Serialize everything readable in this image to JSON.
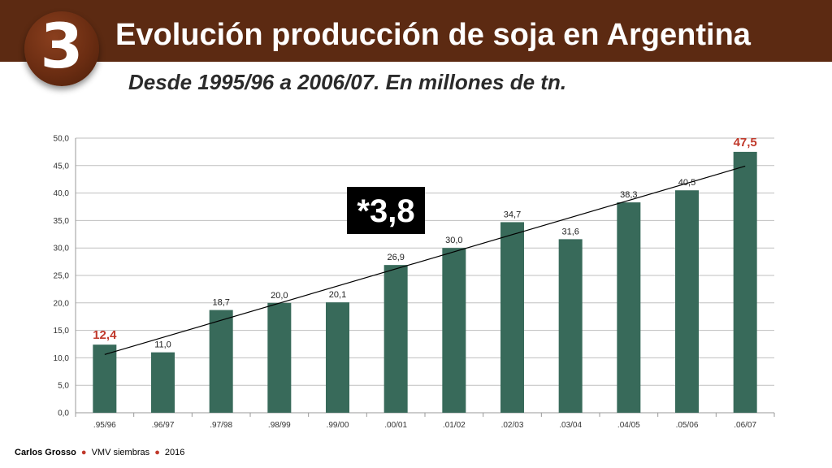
{
  "header": {
    "number": "3",
    "title": "Evolución producción de soja en Argentina",
    "subtitle": "Desde 1995/96 a 2006/07. En millones de tn."
  },
  "chart_data": {
    "type": "bar",
    "categories": [
      ".95/96",
      ".96/97",
      ".97/98",
      ".98/99",
      ".99/00",
      ".00/01",
      ".01/02",
      ".02/03",
      ".03/04",
      ".04/05",
      ".05/06",
      ".06/07"
    ],
    "values": [
      12.4,
      11.0,
      18.7,
      20.0,
      20.1,
      26.9,
      30.0,
      34.7,
      31.6,
      38.3,
      40.5,
      47.5
    ],
    "value_labels": [
      "12,4",
      "11,0",
      "18,7",
      "20,0",
      "20,1",
      "26,9",
      "30,0",
      "34,7",
      "31,6",
      "38,3",
      "40,5",
      "47,5"
    ],
    "highlighted_indices": [
      0,
      11
    ],
    "yticks": [
      "0,0",
      "5,0",
      "10,0",
      "15,0",
      "20,0",
      "25,0",
      "30,0",
      "35,0",
      "40,0",
      "45,0",
      "50,0"
    ],
    "ylim": [
      0,
      50
    ],
    "grid": true,
    "trendline": {
      "from": 10.6,
      "to": 44.9
    },
    "annotation": "*3,8",
    "title": "",
    "xlabel": "",
    "ylabel": ""
  },
  "colors": {
    "bar": "#386a5a",
    "highlight_label": "#c0392b",
    "header": "#5c2a12",
    "grid": "#bfbfbf"
  },
  "footer": {
    "author": "Carlos Grosso",
    "source": "VMV siembras",
    "year": "2016"
  }
}
